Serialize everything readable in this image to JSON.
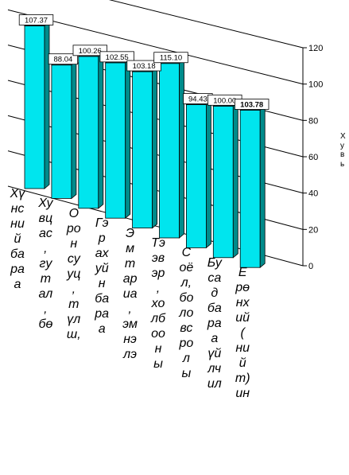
{
  "chart_data": {
    "type": "bar",
    "categories": [
      "Хүнний бараа",
      "Хүвцас, гутал, бөс",
      "Орон сууц, түлш,",
      "Гэр ахуйн бараа",
      "Эмт ариа, эмнэлэ",
      "Тээвэр, холбооны",
      "Соёл, боловсролы",
      "Бусад бараа үйлчил",
      "Ерөнхий (нийт) ин"
    ],
    "category_labels_wrapped": [
      "Хү\nнс\nни\nй\nба\nра\nа",
      "Ху\nвц\nас\n,\nгу\nт\nал\n,\nбө",
      "О\nро\nн\nсу\nуц\n,\nт\nүл\nш,",
      "Гэ\nр\nах\nуй\nн\nба\nра\nа",
      "Э\nм\nт\nар\nиа\n,\nэм\nнэ\nлэ",
      "Тэ\nэв\nэр\n,\nхо\nлб\nоо\nн\nы",
      "С\noё\nл,\nбо\nло\nвс\nро\nл\nы",
      "Бу\nса\nд\nба\nра\nа\nүй\nлч\nил",
      "Е\nрө\nнх\nий\n(\nни\nй\nт)\nин"
    ],
    "values": [
      107.37,
      88.04,
      100.26,
      102.55,
      103.18,
      115.1,
      94.43,
      100.0,
      103.78
    ],
    "value_labels": [
      "107.37",
      "88.04",
      "100.26",
      "102.55",
      "103.18",
      "115.10",
      "94.43",
      "100.00",
      "103.78"
    ],
    "ylim": [
      0,
      120
    ],
    "yticks": [
      "0",
      "20",
      "40",
      "60",
      "80",
      "100",
      "120"
    ],
    "ylabel_wrapped": "Х\nу\nв\nь",
    "grid": true,
    "legend": "none",
    "bar_front_color": "#00e5ee",
    "bar_side_color": "#008b8b",
    "bar_top_color": "#007a7a"
  }
}
